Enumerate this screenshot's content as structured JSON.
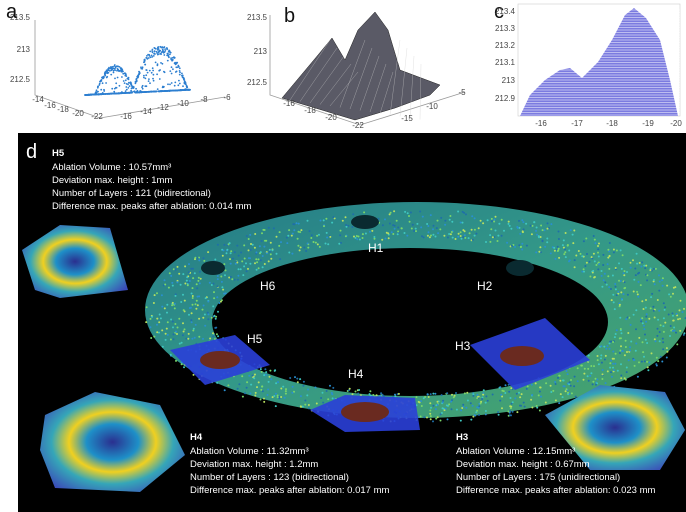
{
  "panels": {
    "a": {
      "label": "a",
      "z_ticks": [
        "213.5",
        "213",
        "212.5"
      ],
      "x_ticks": [
        "-14",
        "-16",
        "-18",
        "-20",
        "-22"
      ],
      "y_ticks": [
        "-16",
        "-14",
        "-12",
        "-10",
        "-8",
        "-6"
      ]
    },
    "b": {
      "label": "b",
      "z_ticks": [
        "213.5",
        "213",
        "212.5"
      ],
      "x_ticks": [
        "-16",
        "-18",
        "-20",
        "-22"
      ],
      "y_ticks": [
        "-15",
        "-10",
        "-5"
      ]
    },
    "c": {
      "label": "c",
      "y_ticks": [
        "213.4",
        "213.3",
        "213.2",
        "213.1",
        "213",
        "212.9"
      ],
      "x_ticks": [
        "-16",
        "-17",
        "-18",
        "-19",
        "-20"
      ]
    },
    "d": {
      "label": "d",
      "holes": [
        "H1",
        "H2",
        "H3",
        "H4",
        "H5",
        "H6"
      ],
      "annotations": [
        {
          "title": "H5",
          "lines": [
            "Ablation Volume : 10.57mm³",
            "Deviation max. height : 1mm",
            "Number of Layers : 121 (bidirectional)",
            "Difference max. peaks after ablation: 0.014 mm"
          ]
        },
        {
          "title": "H4",
          "lines": [
            "Ablation Volume : 11.32mm³",
            "Deviation max. height : 1.2mm",
            "Number of Layers : 123 (bidirectional)",
            "Difference max. peaks after ablation: 0.017 mm"
          ]
        },
        {
          "title": "H3",
          "lines": [
            "Ablation Volume : 12.15mm³",
            "Deviation max. height : 0.67mm",
            "Number of Layers : 175 (unidirectional)",
            "Difference max. peaks after ablation: 0.023 mm"
          ]
        }
      ]
    }
  }
}
